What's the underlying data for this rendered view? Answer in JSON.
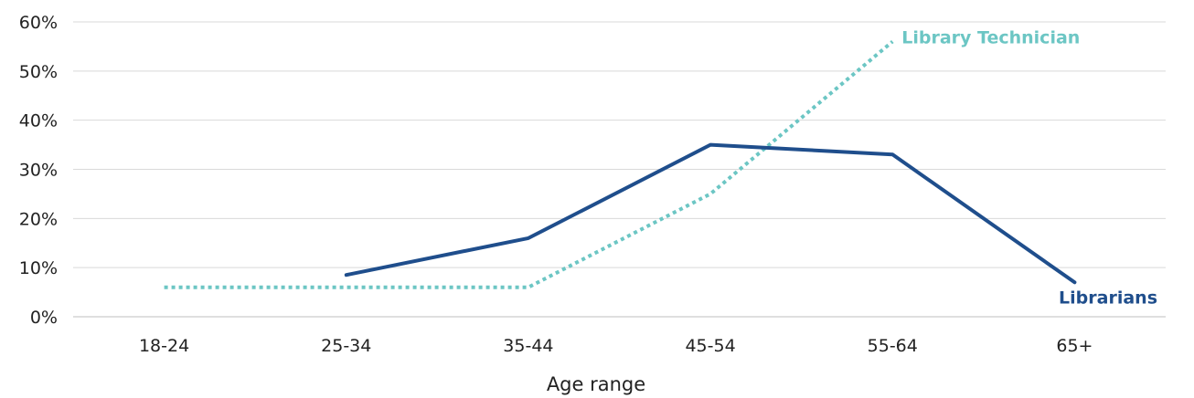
{
  "chart_data": {
    "type": "line",
    "title": "",
    "xlabel": "Age range",
    "ylabel": "",
    "categories": [
      "18-24",
      "25-34",
      "35-44",
      "45-54",
      "55-64",
      "65+"
    ],
    "ylim": [
      0,
      60
    ],
    "yticks": [
      "0%",
      "10%",
      "20%",
      "30%",
      "40%",
      "50%",
      "60%"
    ],
    "grid": "horizontal",
    "legend": "none (series labelled inline)",
    "series": [
      {
        "name": "Library Technician",
        "values": [
          6,
          6,
          6,
          25,
          56,
          null
        ],
        "color": "#6cc6c4",
        "style": "dotted"
      },
      {
        "name": "Librarians",
        "values": [
          null,
          8.5,
          16,
          35,
          33,
          7
        ],
        "color": "#1f4e8c",
        "style": "solid"
      }
    ]
  }
}
